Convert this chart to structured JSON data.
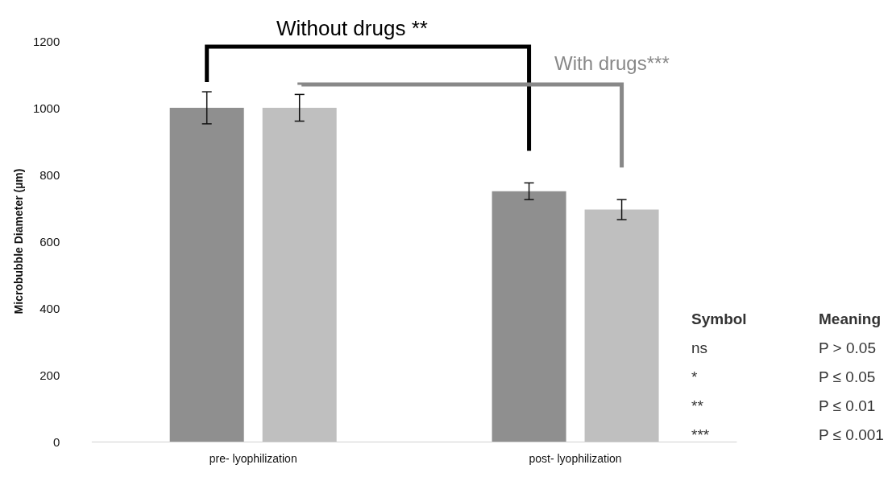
{
  "chart_data": {
    "type": "bar",
    "ylabel": "Microbubble Diameter (µm)",
    "categories": [
      "pre- lyophilization",
      "post- lyophilization"
    ],
    "series": [
      {
        "color": "#8f8f8f",
        "values": [
          1000,
          750
        ],
        "errors": [
          48,
          25
        ]
      },
      {
        "color": "#bfbfbf",
        "values": [
          1000,
          695
        ],
        "errors": [
          40,
          30
        ]
      }
    ],
    "ylim": [
      0,
      1200
    ],
    "yticks": [
      0,
      200,
      400,
      600,
      800,
      1000,
      1200
    ],
    "grid": false,
    "annotations": [
      "Without drugs **",
      "With drugs***",
      "Symbol",
      "Meaning",
      "ns",
      "P > 0.05",
      "*",
      "P ≤ 0.05",
      "**",
      "P ≤ 0.01",
      "***",
      "P ≤ 0.001"
    ]
  }
}
